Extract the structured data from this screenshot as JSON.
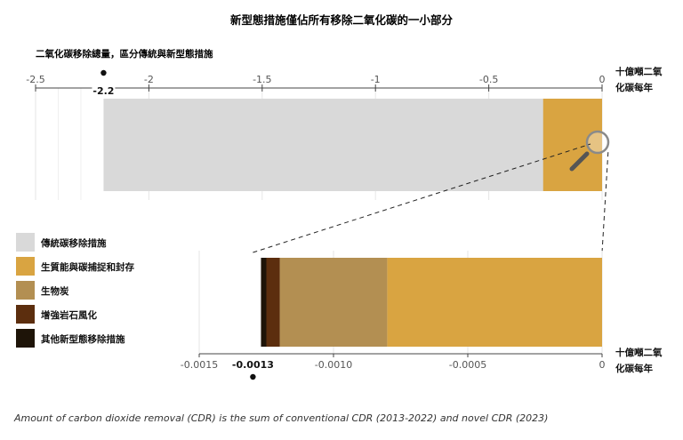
{
  "chart_data": {
    "type": "bar",
    "title": "新型態措施僅佔所有移除二氧化碳的一小部分",
    "subtitle": "二氧化碳移除總量，區分傳統與新型態措施",
    "unit_label": [
      "十億噸二氧",
      "化碳每年"
    ],
    "unit_label_zoom": [
      "十億噸二氧",
      "化碳每年"
    ],
    "caption": "Amount of carbon dioxide removal (CDR) is the sum of conventional CDR (2013-2022) and novel CDR (2023)",
    "colors": {
      "conventional": "#d9d9d9",
      "beccs": "#d9a441",
      "biochar": "#b38f52",
      "weathering": "#5c2e0e",
      "other": "#1e1408"
    },
    "series": [
      {
        "name": "傳統碳移除措施",
        "key": "conventional",
        "value": -2.2
      },
      {
        "name": "生質能與碳捕捉和封存",
        "key": "beccs",
        "value": -0.0008
      },
      {
        "name": "生物炭",
        "key": "biochar",
        "value": -0.0004
      },
      {
        "name": "增強岩石風化",
        "key": "weathering",
        "value": -5e-05
      },
      {
        "name": "其他新型態移除措施",
        "key": "other",
        "value": -2e-05
      }
    ],
    "main_axis": {
      "xlim": [
        -2.5,
        0
      ],
      "ticks": [
        {
          "value": -2.5,
          "label": "-2.5"
        },
        {
          "value": -2,
          "label": "-2"
        },
        {
          "value": -1.5,
          "label": "-1.5"
        },
        {
          "value": -1,
          "label": "-1"
        },
        {
          "value": -0.5,
          "label": "-0.5"
        },
        {
          "value": 0,
          "label": "0"
        }
      ],
      "highlight": {
        "value": -2.2,
        "label": "-2.2"
      }
    },
    "zoom_axis": {
      "xlim": [
        -0.0015,
        0
      ],
      "ticks": [
        {
          "value": -0.0015,
          "label": "-0.0015"
        },
        {
          "value": -0.001,
          "label": "-0.0010"
        },
        {
          "value": -0.0005,
          "label": "-0.0005"
        },
        {
          "value": 0,
          "label": "0"
        }
      ],
      "highlight": {
        "value": -0.0013,
        "label": "-0.0013"
      }
    },
    "legend_position": "left",
    "grid": true
  }
}
